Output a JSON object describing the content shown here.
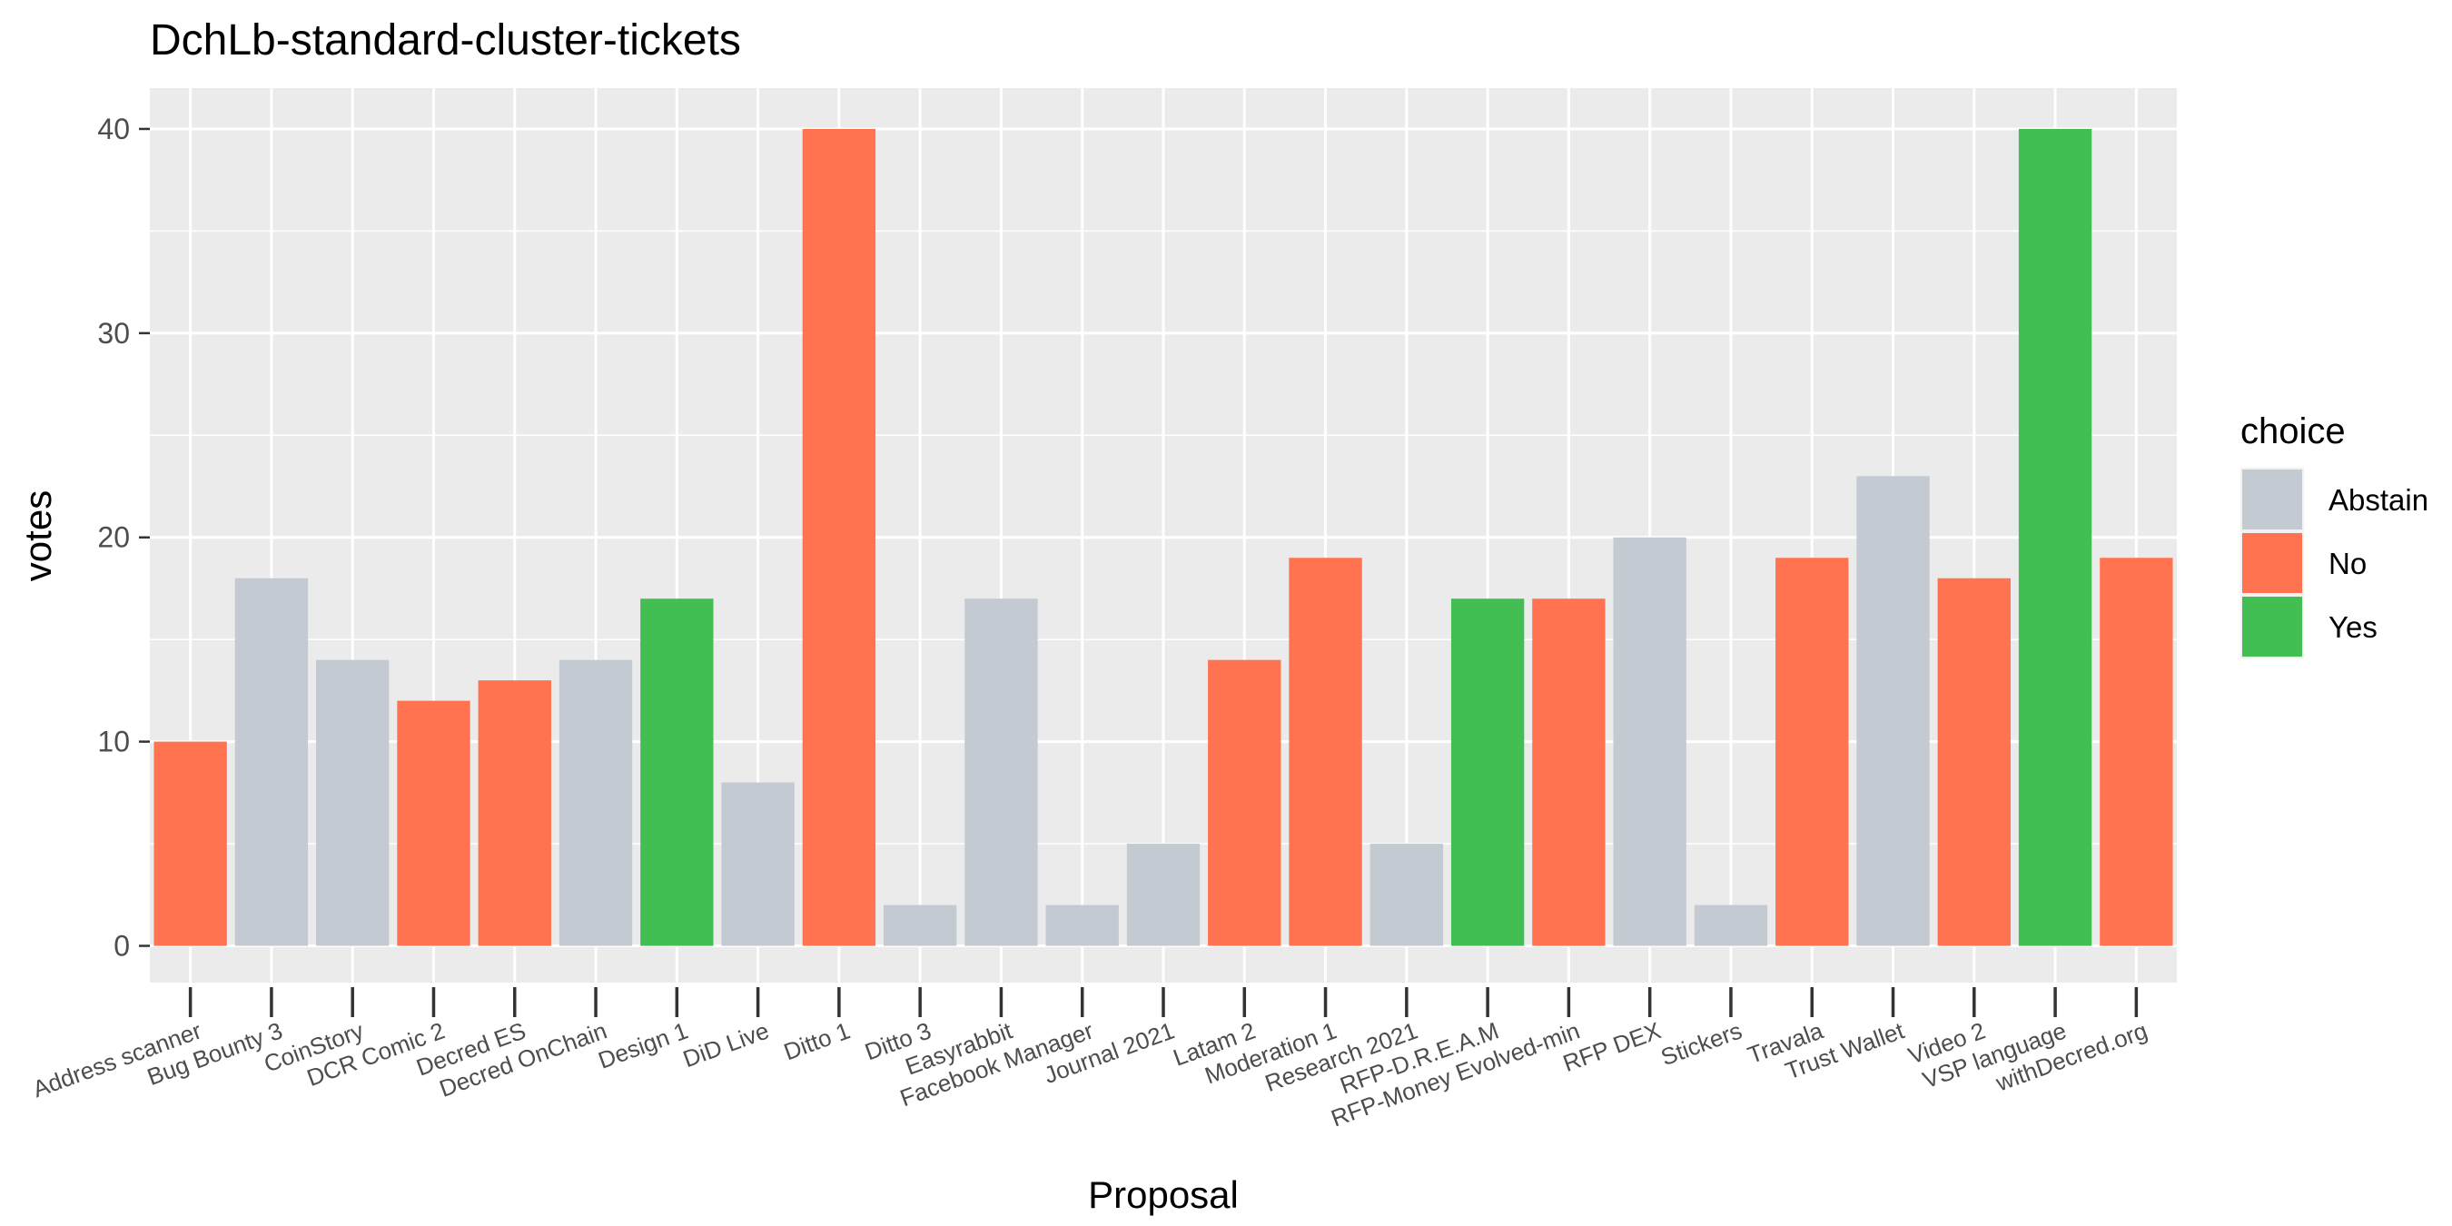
{
  "chart_data": {
    "type": "bar",
    "title": "DchLb-standard-cluster-tickets",
    "xlabel": "Proposal",
    "ylabel": "votes",
    "ylim": [
      -1.8,
      42
    ],
    "yticks": [
      0,
      10,
      20,
      30,
      40
    ],
    "grid": true,
    "legend": {
      "title": "choice",
      "placement": "right",
      "entries": [
        {
          "label": "Abstain",
          "color": "#c4cad2"
        },
        {
          "label": "No",
          "color": "#ff7350"
        },
        {
          "label": "Yes",
          "color": "#42be53"
        }
      ]
    },
    "categories": [
      "Address scanner",
      "Bug Bounty 3",
      "CoinStory",
      "DCR Comic 2",
      "Decred ES",
      "Decred OnChain",
      "Design 1",
      "DiD Live",
      "Ditto 1",
      "Ditto 3",
      "Easyrabbit",
      "Facebook Manager",
      "Journal 2021",
      "Latam 2",
      "Moderation 1",
      "Research 2021",
      "RFP-D.R.E.A.M",
      "RFP-Money Evolved-min",
      "RFP DEX",
      "Stickers",
      "Travala",
      "Trust Wallet",
      "Video 2",
      "VSP language",
      "withDecred.org"
    ],
    "values": [
      10,
      18,
      14,
      12,
      13,
      14,
      17,
      8,
      40,
      2,
      17,
      2,
      5,
      14,
      19,
      5,
      17,
      17,
      20,
      2,
      19,
      23,
      18,
      40,
      19
    ],
    "choices": [
      "No",
      "Abstain",
      "Abstain",
      "No",
      "No",
      "Abstain",
      "Yes",
      "Abstain",
      "No",
      "Abstain",
      "Abstain",
      "Abstain",
      "Abstain",
      "No",
      "No",
      "Abstain",
      "Yes",
      "No",
      "Abstain",
      "Abstain",
      "No",
      "Abstain",
      "No",
      "Yes",
      "No"
    ]
  }
}
